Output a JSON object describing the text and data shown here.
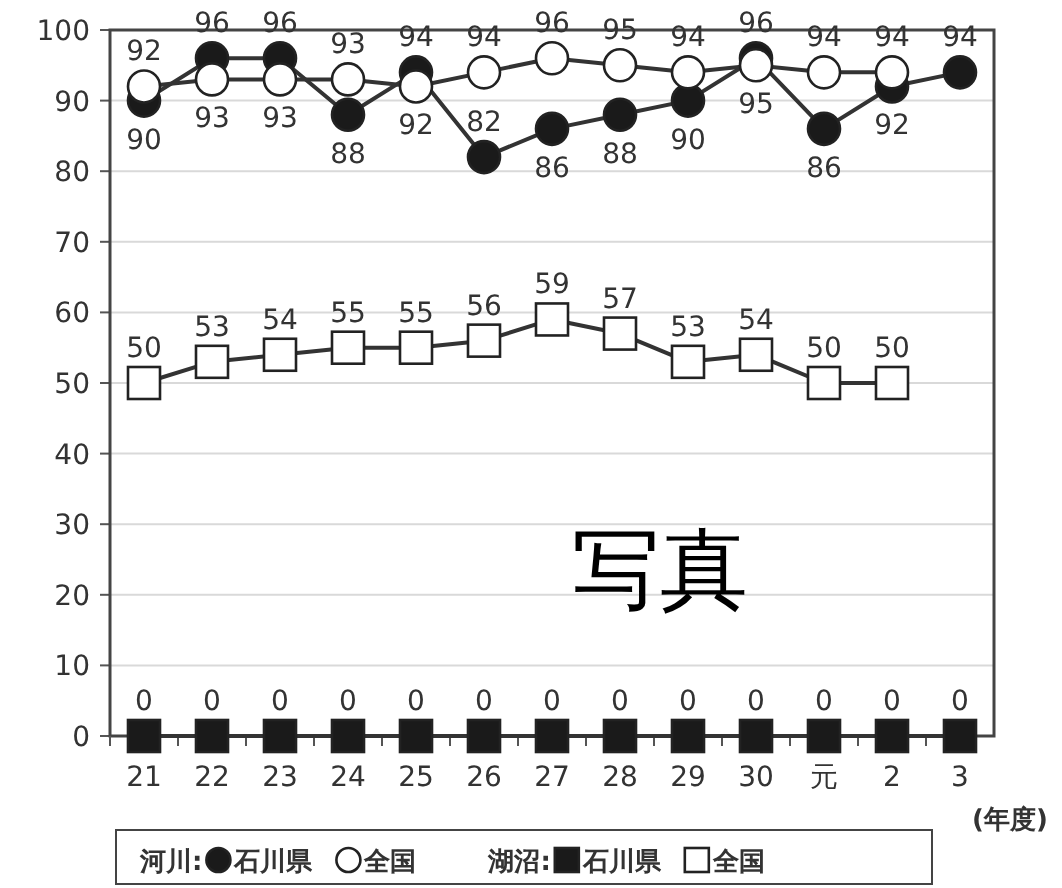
{
  "chart_data": {
    "type": "line",
    "xlabel": "(年度)",
    "categories": [
      "21",
      "22",
      "23",
      "24",
      "25",
      "26",
      "27",
      "28",
      "29",
      "30",
      "元",
      "2",
      "3"
    ],
    "ylim": [
      0,
      100
    ],
    "yticks": [
      0,
      10,
      20,
      30,
      40,
      50,
      60,
      70,
      80,
      90,
      100
    ],
    "grid": "y",
    "legend": "bottom",
    "data_labels": true,
    "line_style": "solid",
    "series": [
      {
        "name": "石川県",
        "color": "#1a1a1a",
        "marker": "circle",
        "values": [
          90,
          96,
          96,
          88,
          94,
          82,
          86,
          88,
          90,
          96,
          86,
          92,
          94
        ]
      },
      {
        "name": "全国",
        "color": "#ffffff",
        "marker": "circle",
        "values": [
          92,
          93,
          93,
          93,
          92,
          94,
          96,
          95,
          94,
          95,
          94,
          94,
          null
        ]
      },
      {
        "name": "石川県",
        "color": "#1a1a1a",
        "marker": "square",
        "values": [
          0,
          0,
          0,
          0,
          0,
          0,
          0,
          0,
          0,
          0,
          0,
          0,
          0
        ]
      },
      {
        "name": "全国",
        "color": "#ffffff",
        "marker": "square",
        "values": [
          50,
          53,
          54,
          55,
          55,
          56,
          59,
          57,
          53,
          54,
          50,
          50,
          null
        ]
      }
    ],
    "annotations": [
      "河川:",
      "湖沼:",
      "写真"
    ]
  }
}
